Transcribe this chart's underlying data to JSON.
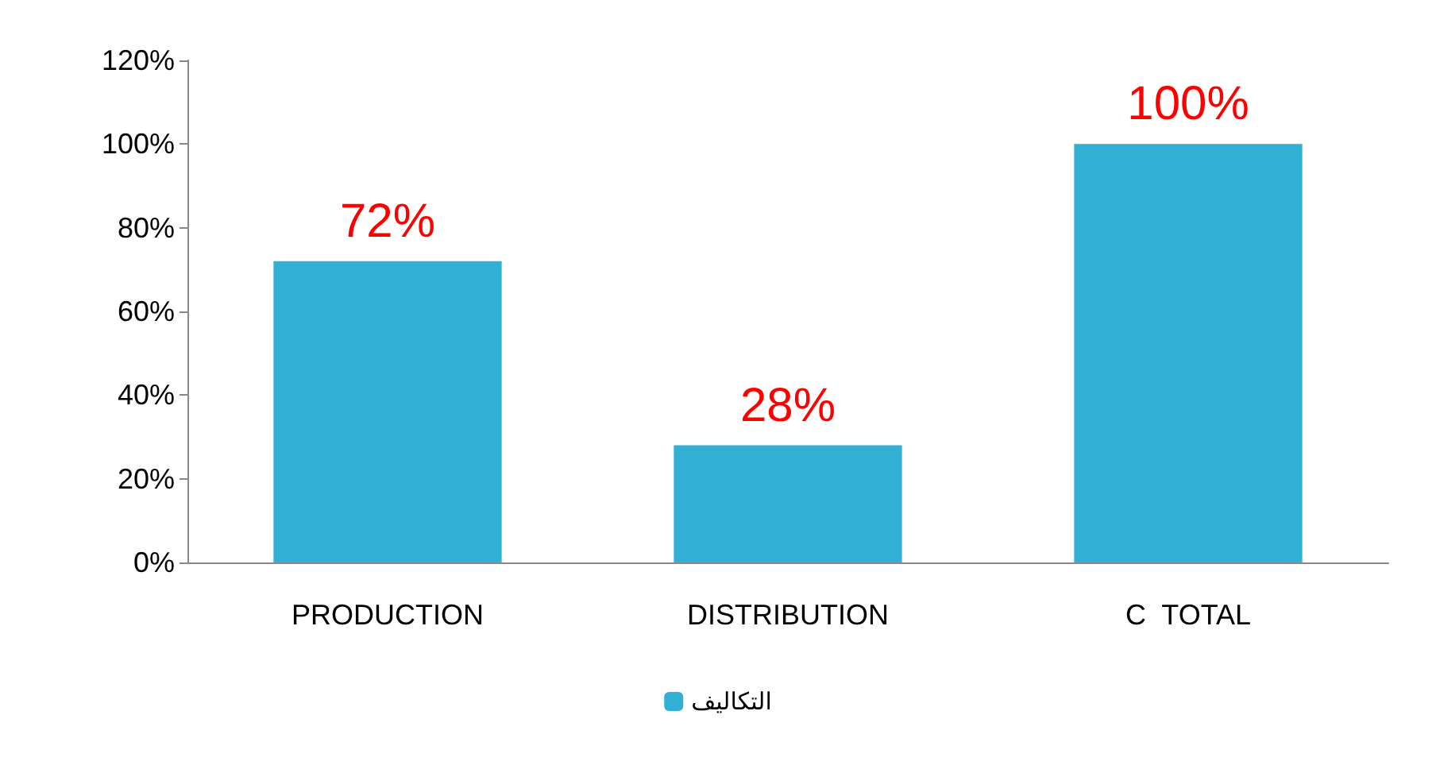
{
  "chart_data": {
    "type": "bar",
    "categories": [
      "PRODUCTION",
      "DISTRIBUTION",
      "C  TOTAL"
    ],
    "series": [
      {
        "name": "التكاليف",
        "color": "#31afd4",
        "values": [
          72,
          28,
          100
        ],
        "value_labels": [
          "72%",
          "28%",
          "100%"
        ]
      }
    ],
    "ylim": [
      0,
      120
    ],
    "yticks": [
      {
        "value": 0,
        "label": "0%"
      },
      {
        "value": 20,
        "label": "20%"
      },
      {
        "value": 40,
        "label": "40%"
      },
      {
        "value": 60,
        "label": "60%"
      },
      {
        "value": 80,
        "label": "80%"
      },
      {
        "value": 100,
        "label": "100%"
      },
      {
        "value": 120,
        "label": "120%"
      }
    ],
    "grid": false,
    "legend": "bottom"
  }
}
